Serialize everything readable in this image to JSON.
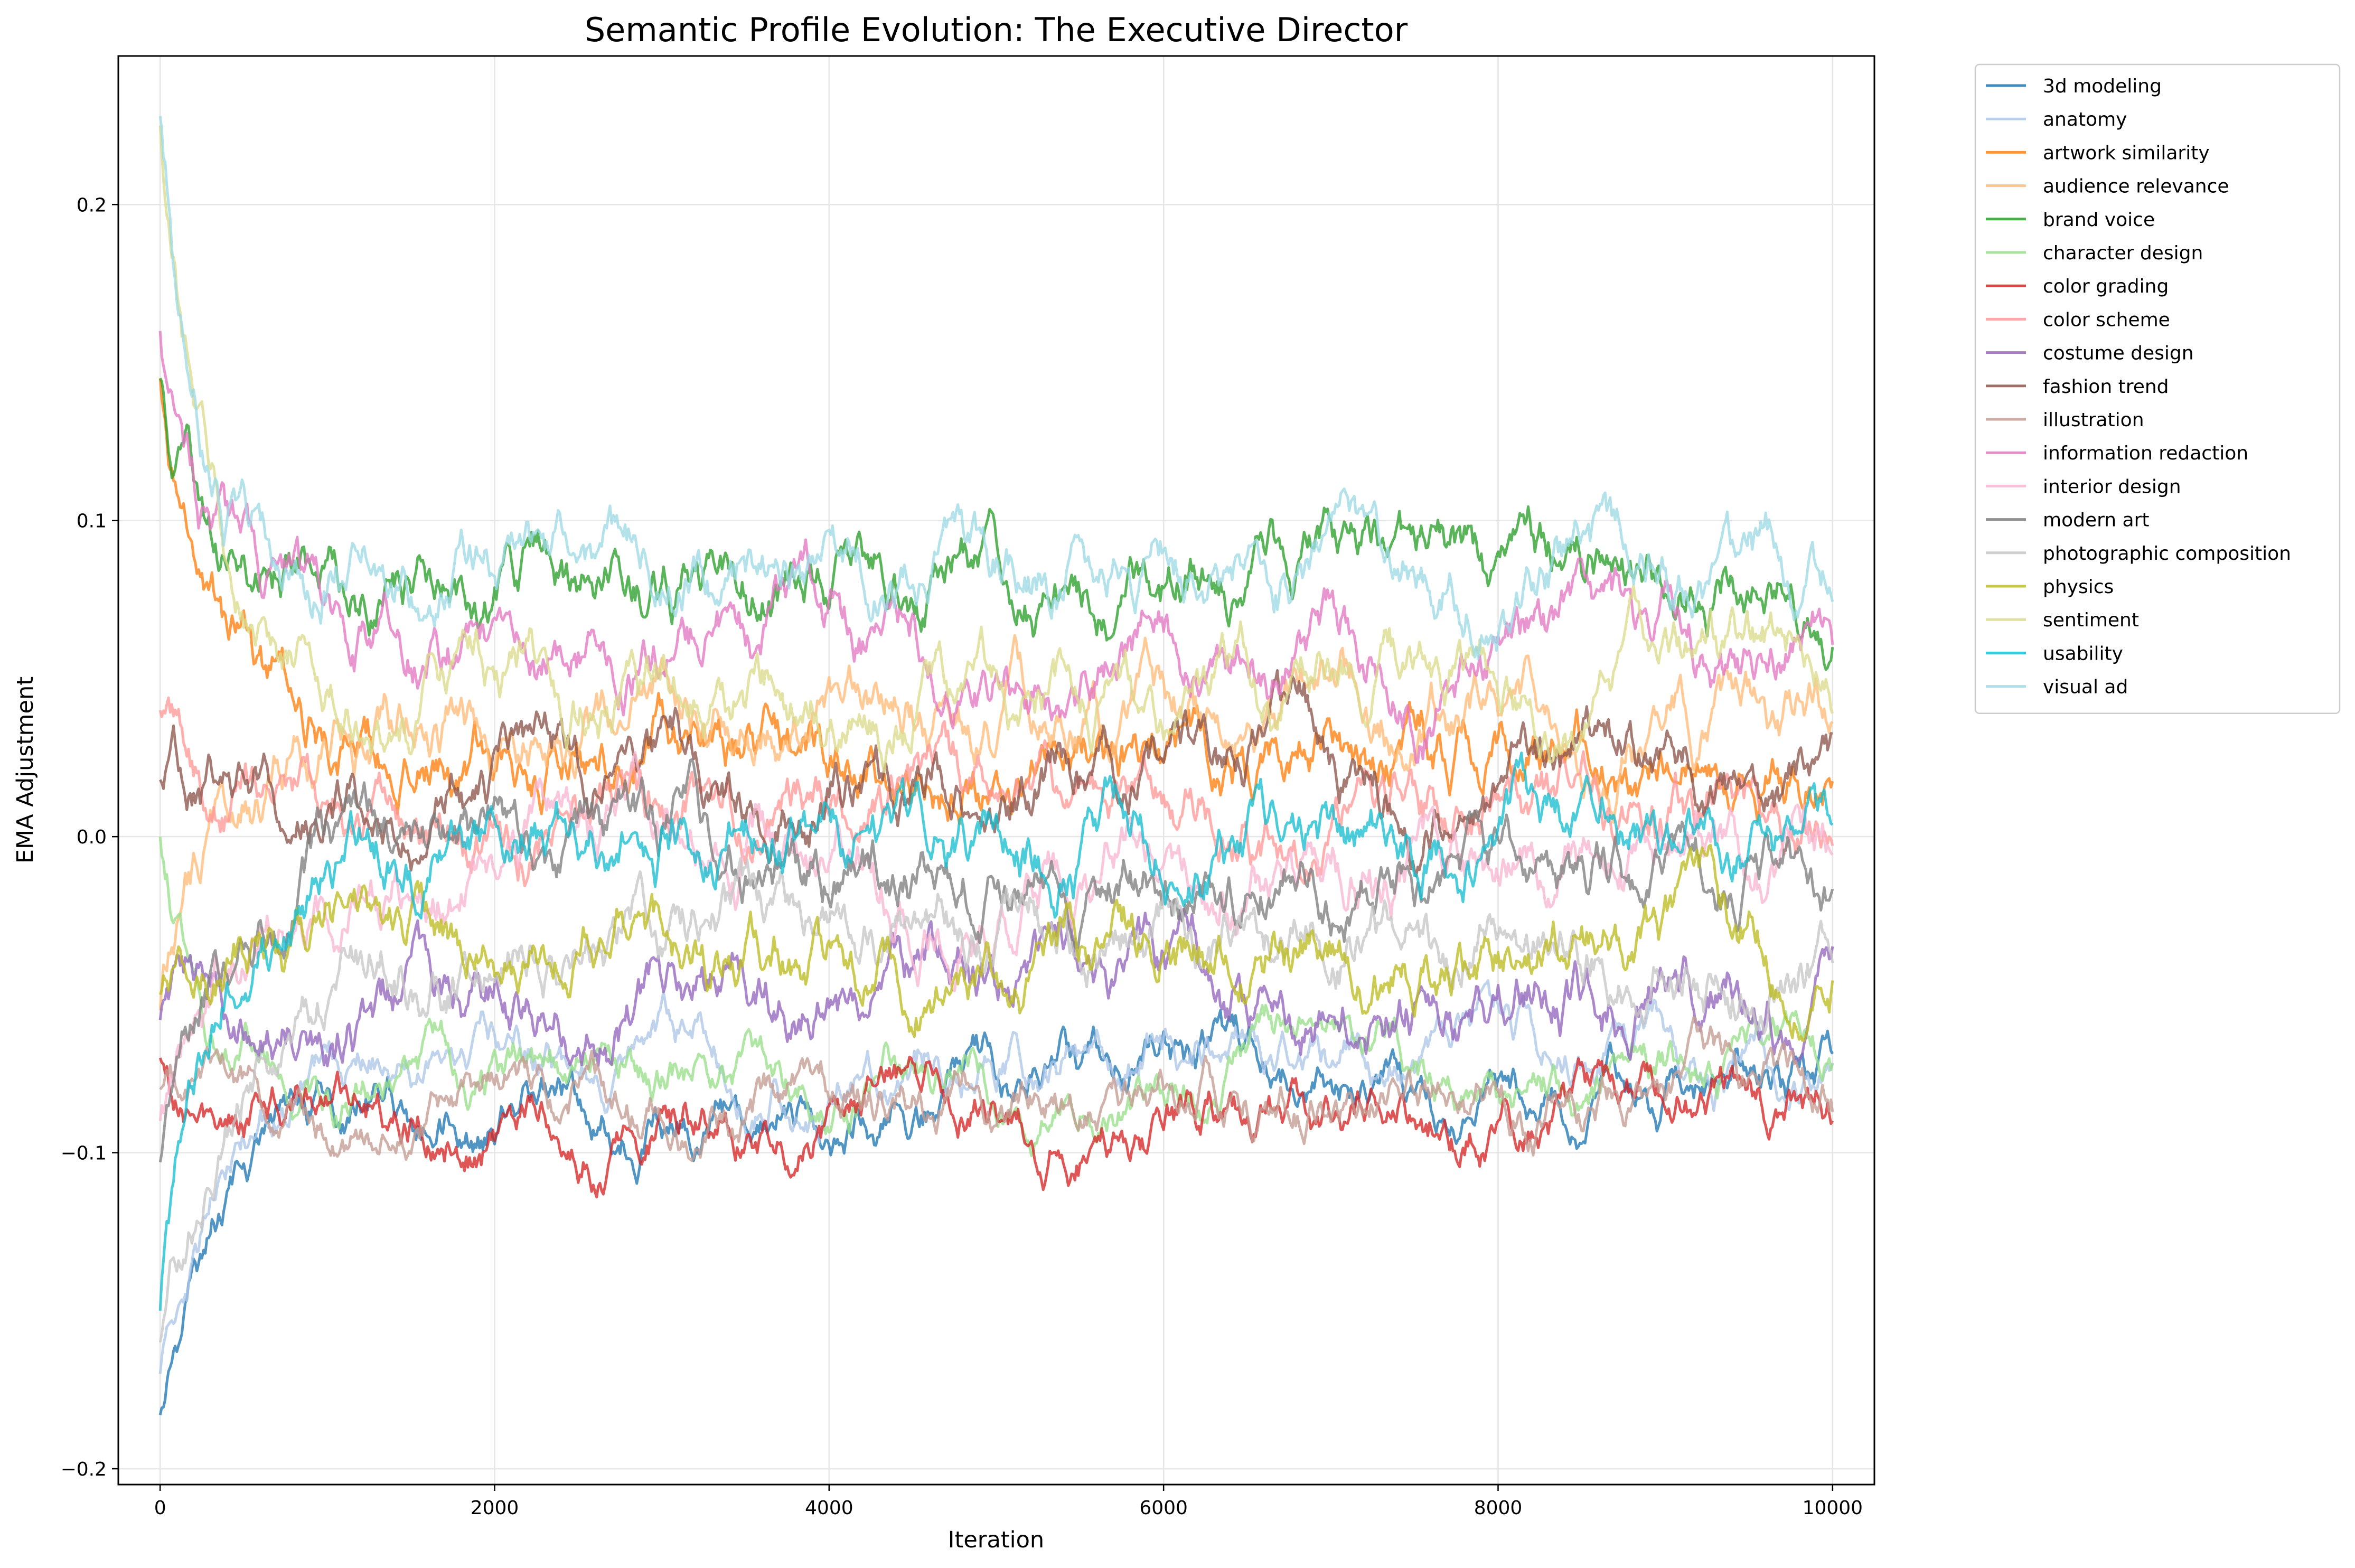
{
  "chart_data": {
    "type": "line",
    "title": "Semantic Profile Evolution: The Executive Director",
    "xlabel": "Iteration",
    "ylabel": "EMA Adjustment",
    "xlim": [
      -250,
      10250
    ],
    "ylim": [
      -0.205,
      0.247
    ],
    "xticks": [
      0,
      2000,
      4000,
      6000,
      8000,
      10000
    ],
    "xtick_labels": [
      "0",
      "2000",
      "4000",
      "6000",
      "8000",
      "10000"
    ],
    "yticks": [
      -0.2,
      -0.1,
      0.0,
      0.1,
      0.2
    ],
    "ytick_labels": [
      "−0.2",
      "−0.1",
      "0.0",
      "0.1",
      "0.2"
    ],
    "grid": true,
    "legend_position": "outside-right-top",
    "series": [
      {
        "name": "3d modeling",
        "color": "#1f77b4",
        "start": -0.183,
        "settle": -0.08,
        "tau": 450,
        "noise": 0.004,
        "seed": 1
      },
      {
        "name": "anatomy",
        "color": "#aec7e8",
        "start": -0.17,
        "settle": -0.07,
        "tau": 450,
        "noise": 0.004,
        "seed": 2
      },
      {
        "name": "artwork similarity",
        "color": "#ff7f0e",
        "start": 0.145,
        "settle": 0.025,
        "tau": 350,
        "noise": 0.005,
        "seed": 3
      },
      {
        "name": "audience relevance",
        "color": "#ffbb78",
        "start": -0.055,
        "settle": 0.035,
        "tau": 400,
        "noise": 0.005,
        "seed": 4
      },
      {
        "name": "brand voice",
        "color": "#2ca02c",
        "start": 0.145,
        "settle": 0.08,
        "tau": 300,
        "noise": 0.005,
        "seed": 5
      },
      {
        "name": "character design",
        "color": "#98df8a",
        "start": 0.0,
        "settle": -0.075,
        "tau": 250,
        "noise": 0.004,
        "seed": 6
      },
      {
        "name": "color grading",
        "color": "#d62728",
        "start": -0.07,
        "settle": -0.087,
        "tau": 200,
        "noise": 0.004,
        "seed": 7
      },
      {
        "name": "color scheme",
        "color": "#ff9896",
        "start": 0.04,
        "settle": 0.005,
        "tau": 400,
        "noise": 0.005,
        "seed": 8
      },
      {
        "name": "costume design",
        "color": "#9467bd",
        "start": -0.058,
        "settle": -0.052,
        "tau": 200,
        "noise": 0.005,
        "seed": 9
      },
      {
        "name": "fashion trend",
        "color": "#8c564b",
        "start": 0.018,
        "settle": 0.015,
        "tau": 200,
        "noise": 0.005,
        "seed": 10
      },
      {
        "name": "illustration",
        "color": "#c49c94",
        "start": -0.08,
        "settle": -0.083,
        "tau": 200,
        "noise": 0.004,
        "seed": 11
      },
      {
        "name": "information redaction",
        "color": "#e377c2",
        "start": 0.16,
        "settle": 0.058,
        "tau": 300,
        "noise": 0.005,
        "seed": 12
      },
      {
        "name": "interior design",
        "color": "#f7b6d2",
        "start": -0.09,
        "settle": -0.012,
        "tau": 450,
        "noise": 0.005,
        "seed": 13
      },
      {
        "name": "modern art",
        "color": "#7f7f7f",
        "start": -0.103,
        "settle": -0.01,
        "tau": 400,
        "noise": 0.005,
        "seed": 14
      },
      {
        "name": "photographic composition",
        "color": "#c7c7c7",
        "start": -0.16,
        "settle": -0.03,
        "tau": 450,
        "noise": 0.005,
        "seed": 15
      },
      {
        "name": "physics",
        "color": "#bcbd22",
        "start": -0.05,
        "settle": -0.038,
        "tau": 200,
        "noise": 0.005,
        "seed": 16
      },
      {
        "name": "sentiment",
        "color": "#dbdb8d",
        "start": 0.225,
        "settle": 0.045,
        "tau": 350,
        "noise": 0.005,
        "seed": 17
      },
      {
        "name": "usability",
        "color": "#17becf",
        "start": -0.15,
        "settle": -0.002,
        "tau": 350,
        "noise": 0.005,
        "seed": 18
      },
      {
        "name": "visual ad",
        "color": "#9edae5",
        "start": 0.228,
        "settle": 0.083,
        "tau": 250,
        "noise": 0.005,
        "seed": 19
      }
    ]
  }
}
